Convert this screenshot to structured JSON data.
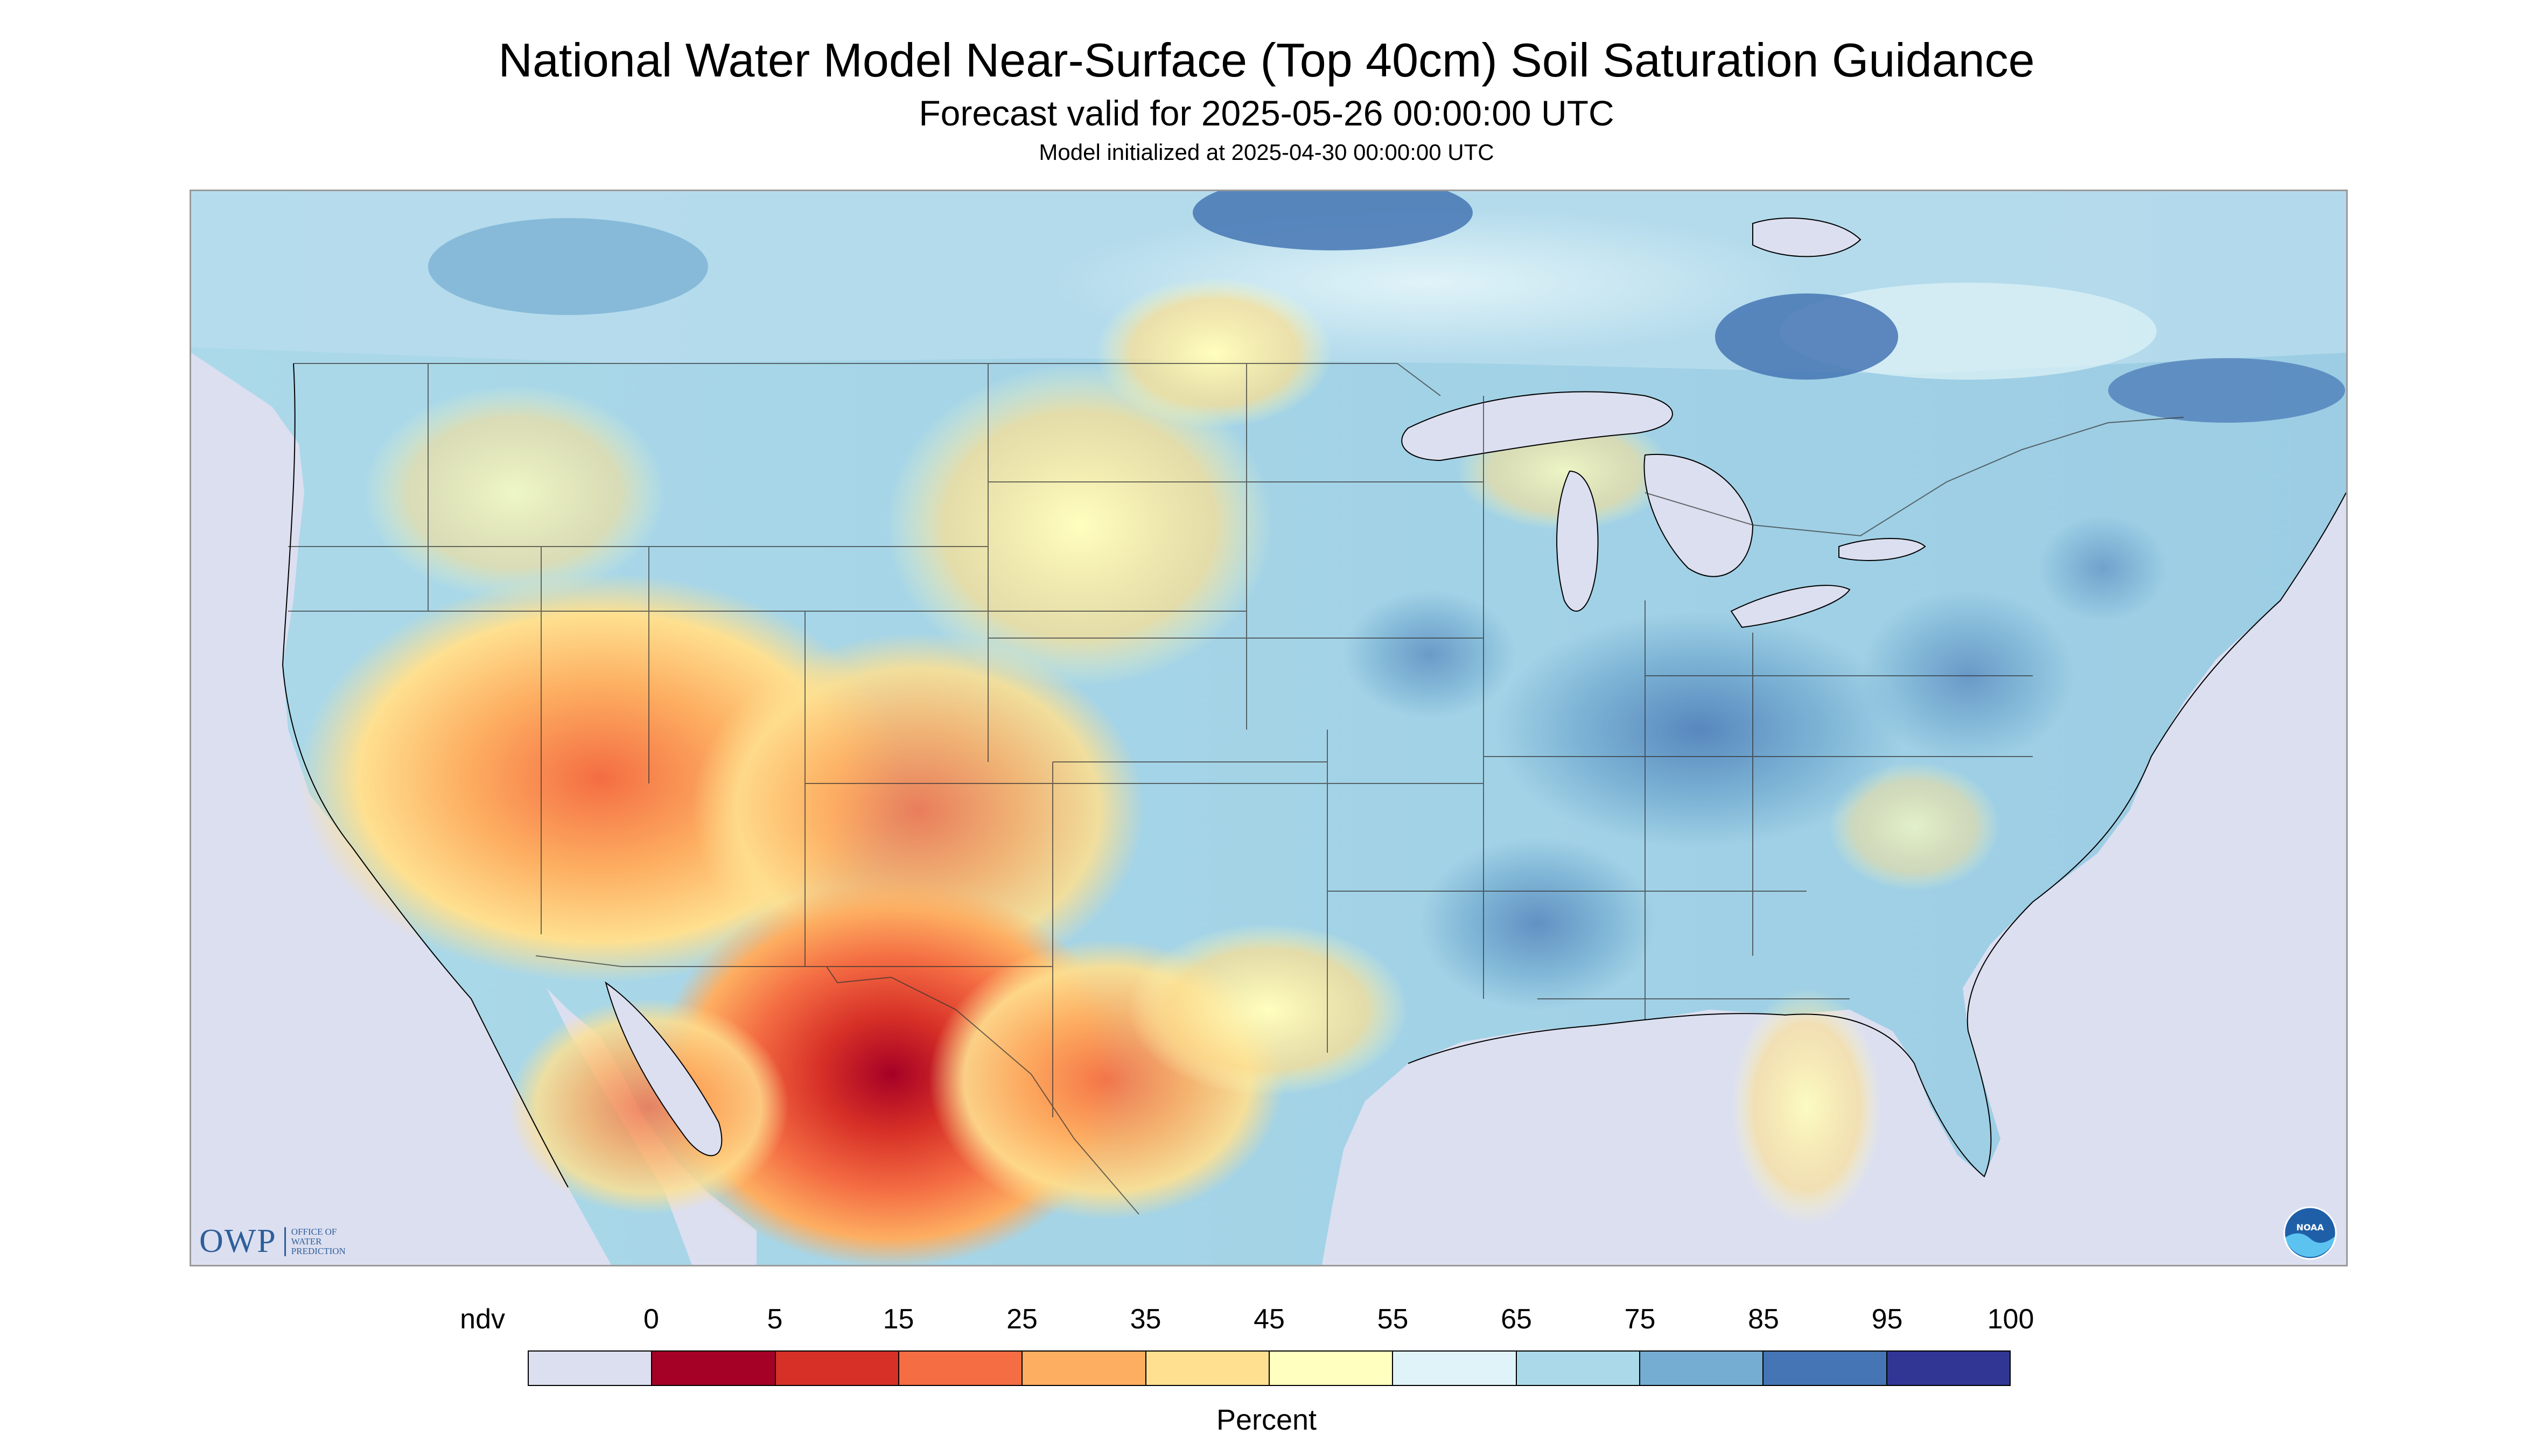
{
  "header": {
    "title": "National Water Model Near-Surface (Top 40cm) Soil Saturation Guidance",
    "subtitle": "Forecast valid for 2025-05-26 00:00:00 UTC",
    "init_line": "Model initialized at 2025-04-30 00:00:00 UTC"
  },
  "map": {
    "region": "CONUS",
    "no_data_color": "#dcdff0"
  },
  "logos": {
    "owp_mark": "OWP",
    "owp_text_1": "OFFICE OF",
    "owp_text_2": "WATER",
    "owp_text_3": "PREDICTION",
    "noaa_text": "NOAA"
  },
  "legend": {
    "labels": [
      "ndv",
      "0",
      "5",
      "15",
      "25",
      "35",
      "45",
      "55",
      "65",
      "75",
      "85",
      "95",
      "100"
    ],
    "colors": [
      "#dcdff0",
      "#a50026",
      "#d73027",
      "#f46d43",
      "#fdae61",
      "#fee090",
      "#ffffbf",
      "#e0f3f8",
      "#abd9e9",
      "#74add1",
      "#4575b4",
      "#313695"
    ],
    "title": "Percent"
  }
}
